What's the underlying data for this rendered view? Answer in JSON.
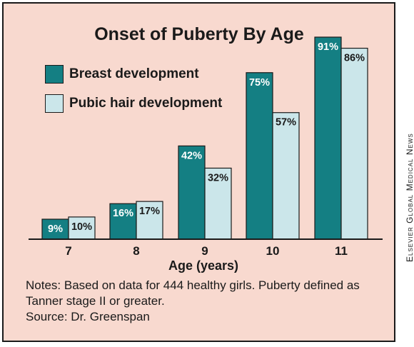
{
  "chart_data": {
    "type": "bar",
    "title": "Onset of Puberty By Age",
    "xlabel": "Age (years)",
    "ylabel": "",
    "categories": [
      "7",
      "8",
      "9",
      "10",
      "11"
    ],
    "series": [
      {
        "name": "Breast development",
        "values": [
          9,
          16,
          42,
          75,
          91
        ],
        "labels": [
          "9%",
          "16%",
          "42%",
          "75%",
          "91%"
        ],
        "color": "#147f83",
        "label_color": "#ffffff"
      },
      {
        "name": "Pubic hair development",
        "values": [
          10,
          17,
          32,
          57,
          86
        ],
        "labels": [
          "10%",
          "17%",
          "32%",
          "57%",
          "86%"
        ],
        "color": "#cbe6ea",
        "label_color": "#1a1a1a"
      }
    ],
    "ylim": [
      0,
      100
    ],
    "legend": "top-left",
    "grid": false
  },
  "notes": {
    "line1": "Notes: Based on data for 444 healthy girls. Puberty defined as",
    "line2": "Tanner stage II or greater.",
    "source": "Source: Dr. Greenspan"
  },
  "credit": "Elsevier Global Medical News",
  "colors": {
    "background": "#f8d9cf",
    "border": "#1a1a1a"
  }
}
